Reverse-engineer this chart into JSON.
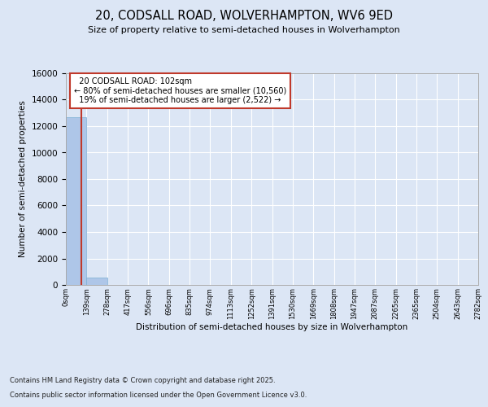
{
  "title": "20, CODSALL ROAD, WOLVERHAMPTON, WV6 9ED",
  "subtitle": "Size of property relative to semi-detached houses in Wolverhampton",
  "xlabel": "Distribution of semi-detached houses by size in Wolverhampton",
  "ylabel": "Number of semi-detached properties",
  "property_size": 102,
  "property_label": "20 CODSALL ROAD: 102sqm",
  "pct_smaller": 80,
  "n_smaller": 10560,
  "pct_larger": 19,
  "n_larger": 2522,
  "bin_labels": [
    "0sqm",
    "139sqm",
    "278sqm",
    "417sqm",
    "556sqm",
    "696sqm",
    "835sqm",
    "974sqm",
    "1113sqm",
    "1252sqm",
    "1391sqm",
    "1530sqm",
    "1669sqm",
    "1808sqm",
    "1947sqm",
    "2087sqm",
    "2265sqm",
    "2365sqm",
    "2504sqm",
    "2643sqm",
    "2782sqm"
  ],
  "bar_heights": [
    12700,
    580,
    20,
    5,
    2,
    1,
    1,
    0,
    0,
    0,
    0,
    0,
    0,
    0,
    0,
    0,
    0,
    0,
    0,
    0
  ],
  "bar_color": "#aec6e8",
  "bar_edge_color": "#7bafd4",
  "vline_color": "#c0392b",
  "annotation_box_color": "#c0392b",
  "ylim": [
    0,
    16000
  ],
  "yticks": [
    0,
    2000,
    4000,
    6000,
    8000,
    10000,
    12000,
    14000,
    16000
  ],
  "bg_color": "#dce6f5",
  "footer_line1": "Contains HM Land Registry data © Crown copyright and database right 2025.",
  "footer_line2": "Contains public sector information licensed under the Open Government Licence v3.0."
}
